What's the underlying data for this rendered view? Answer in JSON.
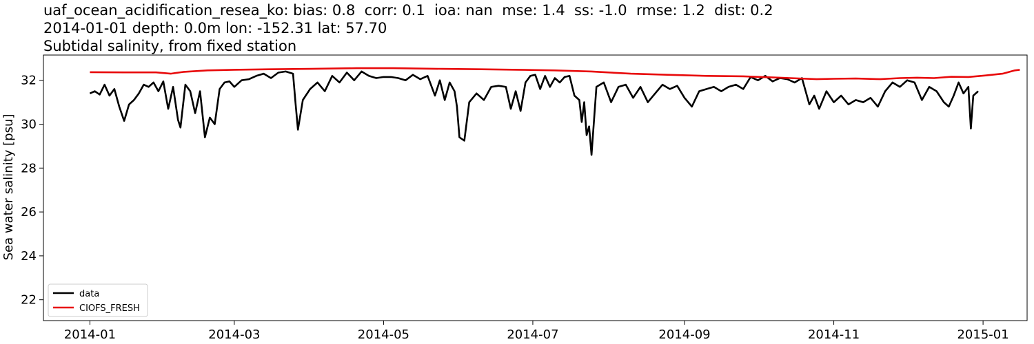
{
  "chart_data": {
    "type": "line",
    "title_lines": [
      "uaf_ocean_acidification_resea_ko: bias: 0.8  corr: 0.1  ioa: nan  mse: 1.4  ss: -1.0  rmse: 1.2  dist: 0.2",
      "2014-01-01 depth: 0.0m lon: -152.31 lat: 57.70",
      "Subtidal salinity, from fixed station"
    ],
    "xlabel": "",
    "ylabel": "Sea water salinity [psu]",
    "x_range": [
      "2013-12-13",
      "2015-01-19"
    ],
    "ylim": [
      21.05,
      33.15
    ],
    "x_ticks": [
      "2014-01-01",
      "2014-03-01",
      "2014-05-01",
      "2014-07-01",
      "2014-09-01",
      "2014-11-01",
      "2015-01-01"
    ],
    "x_tick_labels": [
      "2014-01",
      "2014-03",
      "2014-05",
      "2014-07",
      "2014-09",
      "2014-11",
      "2015-01"
    ],
    "y_ticks": [
      22,
      24,
      26,
      28,
      30,
      32
    ],
    "grid": false,
    "legend_position": "lower-left",
    "series": [
      {
        "name": "data",
        "color": "#000000",
        "points": [
          [
            "2014-01-01",
            31.4
          ],
          [
            "2014-01-03",
            31.5
          ],
          [
            "2014-01-05",
            31.35
          ],
          [
            "2014-01-07",
            31.8
          ],
          [
            "2014-01-09",
            31.3
          ],
          [
            "2014-01-11",
            31.6
          ],
          [
            "2014-01-13",
            30.8
          ],
          [
            "2014-01-15",
            30.15
          ],
          [
            "2014-01-17",
            30.9
          ],
          [
            "2014-01-19",
            31.1
          ],
          [
            "2014-01-21",
            31.4
          ],
          [
            "2014-01-23",
            31.8
          ],
          [
            "2014-01-25",
            31.7
          ],
          [
            "2014-01-27",
            31.9
          ],
          [
            "2014-01-29",
            31.5
          ],
          [
            "2014-01-31",
            31.95
          ],
          [
            "2014-02-02",
            30.7
          ],
          [
            "2014-02-04",
            31.7
          ],
          [
            "2014-02-06",
            30.2
          ],
          [
            "2014-02-07",
            29.85
          ],
          [
            "2014-02-09",
            31.8
          ],
          [
            "2014-02-11",
            31.5
          ],
          [
            "2014-02-13",
            30.5
          ],
          [
            "2014-02-15",
            31.5
          ],
          [
            "2014-02-17",
            29.4
          ],
          [
            "2014-02-19",
            30.3
          ],
          [
            "2014-02-21",
            30.0
          ],
          [
            "2014-02-23",
            31.6
          ],
          [
            "2014-02-25",
            31.9
          ],
          [
            "2014-02-27",
            31.95
          ],
          [
            "2014-03-01",
            31.7
          ],
          [
            "2014-03-04",
            32.0
          ],
          [
            "2014-03-07",
            32.05
          ],
          [
            "2014-03-10",
            32.2
          ],
          [
            "2014-03-13",
            32.3
          ],
          [
            "2014-03-16",
            32.1
          ],
          [
            "2014-03-19",
            32.35
          ],
          [
            "2014-03-22",
            32.4
          ],
          [
            "2014-03-25",
            32.3
          ],
          [
            "2014-03-26",
            31.0
          ],
          [
            "2014-03-27",
            29.75
          ],
          [
            "2014-03-29",
            31.1
          ],
          [
            "2014-04-01",
            31.6
          ],
          [
            "2014-04-04",
            31.9
          ],
          [
            "2014-04-07",
            31.5
          ],
          [
            "2014-04-10",
            32.2
          ],
          [
            "2014-04-13",
            31.9
          ],
          [
            "2014-04-16",
            32.35
          ],
          [
            "2014-04-19",
            32.0
          ],
          [
            "2014-04-22",
            32.4
          ],
          [
            "2014-04-25",
            32.2
          ],
          [
            "2014-04-28",
            32.1
          ],
          [
            "2014-05-01",
            32.15
          ],
          [
            "2014-05-04",
            32.15
          ],
          [
            "2014-05-07",
            32.1
          ],
          [
            "2014-05-10",
            32.0
          ],
          [
            "2014-05-13",
            32.25
          ],
          [
            "2014-05-16",
            32.05
          ],
          [
            "2014-05-19",
            32.2
          ],
          [
            "2014-05-22",
            31.3
          ],
          [
            "2014-05-24",
            32.0
          ],
          [
            "2014-05-26",
            31.1
          ],
          [
            "2014-05-28",
            31.9
          ],
          [
            "2014-05-30",
            31.5
          ],
          [
            "2014-05-31",
            30.8
          ],
          [
            "2014-06-01",
            29.4
          ],
          [
            "2014-06-03",
            29.25
          ],
          [
            "2014-06-05",
            31.0
          ],
          [
            "2014-06-08",
            31.4
          ],
          [
            "2014-06-11",
            31.1
          ],
          [
            "2014-06-14",
            31.7
          ],
          [
            "2014-06-17",
            31.75
          ],
          [
            "2014-06-20",
            31.7
          ],
          [
            "2014-06-22",
            30.7
          ],
          [
            "2014-06-24",
            31.5
          ],
          [
            "2014-06-26",
            30.6
          ],
          [
            "2014-06-28",
            31.9
          ],
          [
            "2014-06-30",
            32.2
          ],
          [
            "2014-07-02",
            32.25
          ],
          [
            "2014-07-04",
            31.6
          ],
          [
            "2014-07-06",
            32.2
          ],
          [
            "2014-07-08",
            31.7
          ],
          [
            "2014-07-10",
            32.1
          ],
          [
            "2014-07-12",
            31.9
          ],
          [
            "2014-07-14",
            32.15
          ],
          [
            "2014-07-16",
            32.2
          ],
          [
            "2014-07-18",
            31.3
          ],
          [
            "2014-07-20",
            31.1
          ],
          [
            "2014-07-21",
            30.1
          ],
          [
            "2014-07-22",
            31.0
          ],
          [
            "2014-07-23",
            29.5
          ],
          [
            "2014-07-24",
            29.9
          ],
          [
            "2014-07-25",
            28.6
          ],
          [
            "2014-07-27",
            31.7
          ],
          [
            "2014-07-30",
            31.9
          ],
          [
            "2014-08-02",
            31.0
          ],
          [
            "2014-08-05",
            31.7
          ],
          [
            "2014-08-08",
            31.8
          ],
          [
            "2014-08-11",
            31.2
          ],
          [
            "2014-08-14",
            31.7
          ],
          [
            "2014-08-17",
            31.0
          ],
          [
            "2014-08-20",
            31.4
          ],
          [
            "2014-08-23",
            31.8
          ],
          [
            "2014-08-26",
            31.6
          ],
          [
            "2014-08-29",
            31.75
          ],
          [
            "2014-09-01",
            31.2
          ],
          [
            "2014-09-04",
            30.8
          ],
          [
            "2014-09-07",
            31.5
          ],
          [
            "2014-09-10",
            31.6
          ],
          [
            "2014-09-13",
            31.7
          ],
          [
            "2014-09-16",
            31.5
          ],
          [
            "2014-09-19",
            31.7
          ],
          [
            "2014-09-22",
            31.8
          ],
          [
            "2014-09-25",
            31.6
          ],
          [
            "2014-09-28",
            32.15
          ],
          [
            "2014-10-01",
            32.0
          ],
          [
            "2014-10-04",
            32.2
          ],
          [
            "2014-10-07",
            31.95
          ],
          [
            "2014-10-10",
            32.1
          ],
          [
            "2014-10-13",
            32.05
          ],
          [
            "2014-10-16",
            31.9
          ],
          [
            "2014-10-19",
            32.1
          ],
          [
            "2014-10-22",
            30.9
          ],
          [
            "2014-10-24",
            31.3
          ],
          [
            "2014-10-26",
            30.7
          ],
          [
            "2014-10-29",
            31.5
          ],
          [
            "2014-11-01",
            31.0
          ],
          [
            "2014-11-04",
            31.3
          ],
          [
            "2014-11-07",
            30.9
          ],
          [
            "2014-11-10",
            31.1
          ],
          [
            "2014-11-13",
            31.0
          ],
          [
            "2014-11-16",
            31.2
          ],
          [
            "2014-11-19",
            30.8
          ],
          [
            "2014-11-22",
            31.5
          ],
          [
            "2014-11-25",
            31.9
          ],
          [
            "2014-11-28",
            31.7
          ],
          [
            "2014-12-01",
            32.0
          ],
          [
            "2014-12-04",
            31.9
          ],
          [
            "2014-12-07",
            31.1
          ],
          [
            "2014-12-10",
            31.7
          ],
          [
            "2014-12-13",
            31.5
          ],
          [
            "2014-12-16",
            31.0
          ],
          [
            "2014-12-18",
            30.8
          ],
          [
            "2014-12-20",
            31.3
          ],
          [
            "2014-12-22",
            31.9
          ],
          [
            "2014-12-24",
            31.4
          ],
          [
            "2014-12-26",
            31.7
          ],
          [
            "2014-12-27",
            29.8
          ],
          [
            "2014-12-28",
            31.3
          ],
          [
            "2014-12-30",
            31.5
          ]
        ]
      },
      {
        "name": "CIOFS_FRESH",
        "color": "#e8090a",
        "points": [
          [
            "2014-01-01",
            32.37
          ],
          [
            "2014-01-15",
            32.36
          ],
          [
            "2014-01-28",
            32.36
          ],
          [
            "2014-02-03",
            32.3
          ],
          [
            "2014-02-08",
            32.38
          ],
          [
            "2014-02-18",
            32.45
          ],
          [
            "2014-03-01",
            32.48
          ],
          [
            "2014-03-15",
            32.5
          ],
          [
            "2014-04-01",
            32.52
          ],
          [
            "2014-04-20",
            32.55
          ],
          [
            "2014-05-05",
            32.55
          ],
          [
            "2014-05-25",
            32.52
          ],
          [
            "2014-06-10",
            32.5
          ],
          [
            "2014-06-25",
            32.48
          ],
          [
            "2014-07-10",
            32.45
          ],
          [
            "2014-07-25",
            32.4
          ],
          [
            "2014-08-10",
            32.3
          ],
          [
            "2014-08-25",
            32.25
          ],
          [
            "2014-09-10",
            32.2
          ],
          [
            "2014-09-25",
            32.18
          ],
          [
            "2014-10-10",
            32.12
          ],
          [
            "2014-10-25",
            32.05
          ],
          [
            "2014-11-01",
            32.07
          ],
          [
            "2014-11-10",
            32.08
          ],
          [
            "2014-11-20",
            32.05
          ],
          [
            "2014-11-28",
            32.1
          ],
          [
            "2014-12-05",
            32.12
          ],
          [
            "2014-12-12",
            32.1
          ],
          [
            "2014-12-19",
            32.16
          ],
          [
            "2014-12-26",
            32.15
          ],
          [
            "2015-01-02",
            32.22
          ],
          [
            "2015-01-09",
            32.3
          ],
          [
            "2015-01-14",
            32.45
          ],
          [
            "2015-01-16",
            32.48
          ]
        ]
      }
    ]
  }
}
